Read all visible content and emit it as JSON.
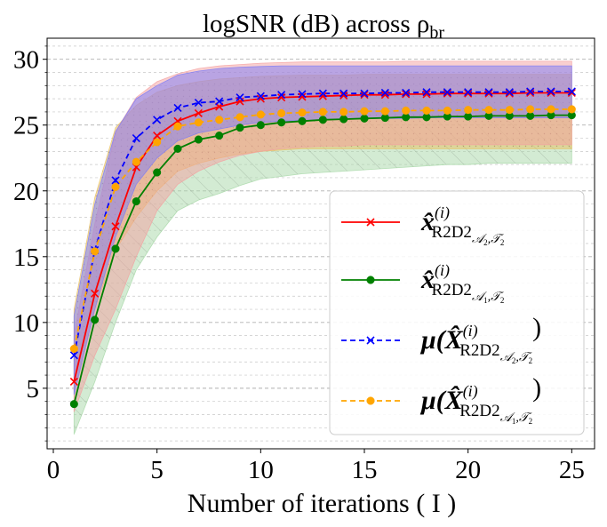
{
  "chart_data": {
    "type": "line",
    "title": "logSNR (dB) across ρ",
    "title_sub": "br",
    "xlabel": "Number of iterations ( I )",
    "ylabel": "",
    "xlim": [
      -0.3,
      26.1
    ],
    "ylim": [
      0.4,
      31.6
    ],
    "xticks": [
      0,
      5,
      10,
      15,
      20,
      25
    ],
    "yticks": [
      5,
      10,
      15,
      20,
      25,
      30
    ],
    "grid": "horizontal dashed (major and minor)",
    "legend_position": "lower-right",
    "x": [
      1,
      2,
      3,
      4,
      5,
      6,
      7,
      8,
      9,
      10,
      11,
      12,
      13,
      14,
      15,
      16,
      17,
      18,
      19,
      20,
      21,
      22,
      23,
      24,
      25
    ],
    "series": [
      {
        "name": "x̂(i) R2D2 A2,T2",
        "color": "#ff0000",
        "linestyle": "solid",
        "marker": "x",
        "values": [
          5.5,
          12.2,
          17.3,
          21.8,
          24.2,
          25.3,
          25.9,
          26.4,
          26.8,
          27.0,
          27.1,
          27.15,
          27.2,
          27.25,
          27.3,
          27.3,
          27.35,
          27.35,
          27.4,
          27.4,
          27.4,
          27.4,
          27.45,
          27.45,
          27.45
        ],
        "band_upper": [
          9.0,
          17.5,
          24.5,
          27.1,
          28.3,
          28.9,
          29.3,
          29.5,
          29.6,
          29.7,
          29.75,
          29.8,
          29.8,
          29.8,
          29.8,
          29.8,
          29.85,
          29.85,
          29.85,
          29.85,
          29.85,
          29.85,
          29.85,
          29.85,
          29.85
        ],
        "band_lower": [
          3.2,
          7.5,
          11.0,
          15.0,
          18.5,
          20.5,
          21.5,
          22.2,
          22.7,
          23.0,
          23.2,
          23.3,
          23.4,
          23.4,
          23.5,
          23.5,
          23.5,
          23.5,
          23.5,
          23.5,
          23.5,
          23.5,
          23.5,
          23.5,
          23.5
        ],
        "band_color": "#f4a0a0"
      },
      {
        "name": "x̂(i) R2D2 A1,T2",
        "color": "#008000",
        "linestyle": "solid",
        "marker": "o",
        "values": [
          3.8,
          10.2,
          15.6,
          19.2,
          21.4,
          23.2,
          23.9,
          24.2,
          24.8,
          25.0,
          25.2,
          25.3,
          25.4,
          25.45,
          25.5,
          25.55,
          25.6,
          25.6,
          25.65,
          25.65,
          25.7,
          25.7,
          25.7,
          25.75,
          25.75
        ],
        "band_upper": [
          8.0,
          15.0,
          20.5,
          23.8,
          25.5,
          26.3,
          26.7,
          26.9,
          27.0,
          27.1,
          27.15,
          27.2,
          27.2,
          27.25,
          27.25,
          27.3,
          27.3,
          27.3,
          27.3,
          27.3,
          27.3,
          27.3,
          27.3,
          27.3,
          27.3
        ],
        "band_lower": [
          1.5,
          5.5,
          10.0,
          14.0,
          16.5,
          18.5,
          19.3,
          19.8,
          20.4,
          20.9,
          21.1,
          21.3,
          21.4,
          21.5,
          21.6,
          21.7,
          21.8,
          21.9,
          22.0,
          22.0,
          22.1,
          22.1,
          22.1,
          22.1,
          22.1
        ],
        "band_color": "#a8d8a8"
      },
      {
        "name": "μ(X̂(i) R2D2 A2,T2)",
        "color": "#0000ff",
        "linestyle": "dashed",
        "marker": "x",
        "values": [
          7.5,
          15.5,
          20.8,
          24.0,
          25.4,
          26.3,
          26.7,
          26.8,
          27.1,
          27.2,
          27.3,
          27.35,
          27.4,
          27.4,
          27.4,
          27.45,
          27.45,
          27.5,
          27.5,
          27.5,
          27.5,
          27.5,
          27.55,
          27.55,
          27.55
        ],
        "band_upper": [
          10.5,
          19.0,
          24.5,
          27.0,
          28.0,
          28.8,
          29.1,
          29.3,
          29.4,
          29.45,
          29.5,
          29.5,
          29.5,
          29.5,
          29.5,
          29.5,
          29.5,
          29.5,
          29.5,
          29.5,
          29.5,
          29.5,
          29.5,
          29.5,
          29.5
        ],
        "band_lower": [
          4.5,
          11.0,
          16.5,
          20.5,
          22.5,
          23.8,
          24.4,
          24.7,
          25.0,
          25.2,
          25.3,
          25.35,
          25.4,
          25.45,
          25.5,
          25.5,
          25.5,
          25.55,
          25.55,
          25.55,
          25.55,
          25.55,
          25.55,
          25.55,
          25.55
        ],
        "band_color": "#7a7af8"
      },
      {
        "name": "μ(X̂(i) R2D2 A1,T2)",
        "color": "#ffa500",
        "linestyle": "dashed",
        "marker": "o",
        "values": [
          8.0,
          15.4,
          20.3,
          22.2,
          23.7,
          24.9,
          25.2,
          25.4,
          25.6,
          25.8,
          25.9,
          25.95,
          26.0,
          26.0,
          26.05,
          26.05,
          26.1,
          26.1,
          26.1,
          26.15,
          26.15,
          26.15,
          26.2,
          26.2,
          26.2
        ],
        "band_upper": [
          11.0,
          19.5,
          24.8,
          26.5,
          27.5,
          28.0,
          28.3,
          28.5,
          28.6,
          28.7,
          28.75,
          28.8,
          28.8,
          28.8,
          28.85,
          28.85,
          28.85,
          28.85,
          28.85,
          28.85,
          28.85,
          28.85,
          28.85,
          28.85,
          28.85
        ],
        "band_lower": [
          4.8,
          11.0,
          15.5,
          18.0,
          20.0,
          21.5,
          22.1,
          22.5,
          22.8,
          23.0,
          23.1,
          23.2,
          23.2,
          23.2,
          23.2,
          23.2,
          23.2,
          23.2,
          23.2,
          23.2,
          23.2,
          23.2,
          23.2,
          23.2,
          23.2
        ],
        "band_color": "#e8c060"
      }
    ],
    "legend": [
      {
        "symbol": "x̂",
        "sup": "(i)",
        "sub": "R2D2",
        "sub2": "A2,T2"
      },
      {
        "symbol": "x̂",
        "sup": "(i)",
        "sub": "R2D2",
        "sub2": "A1,T2"
      },
      {
        "symbol": "μ(X̂",
        "sup": "(i)",
        "sub": "R2D2",
        "sub2": "A2,T2",
        "close": ")"
      },
      {
        "symbol": "μ(X̂",
        "sup": "(i)",
        "sub": "R2D2",
        "sub2": "A1,T2",
        "close": ")"
      }
    ]
  }
}
